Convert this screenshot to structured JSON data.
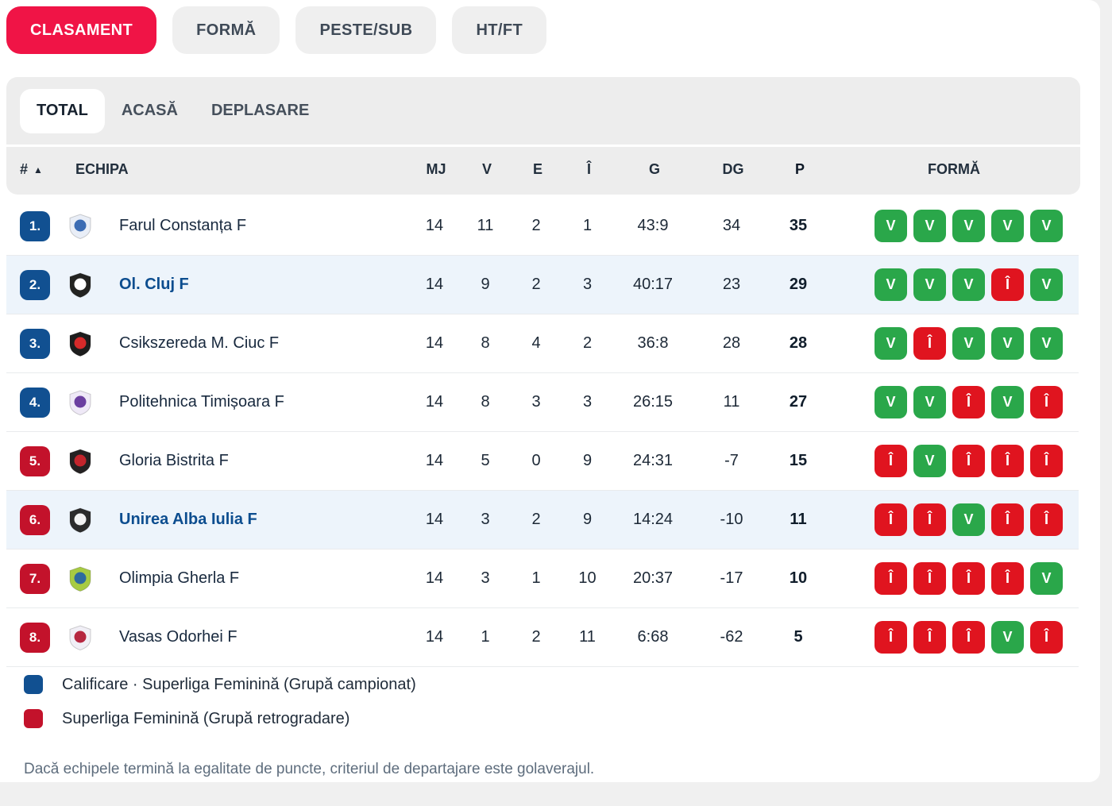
{
  "tabs": [
    {
      "label": "CLASAMENT",
      "active": true
    },
    {
      "label": "FORMĂ",
      "active": false
    },
    {
      "label": "PESTE/SUB",
      "active": false
    },
    {
      "label": "HT/FT",
      "active": false
    }
  ],
  "subtabs": [
    {
      "label": "TOTAL",
      "active": true
    },
    {
      "label": "ACASĂ",
      "active": false
    },
    {
      "label": "DEPLASARE",
      "active": false
    }
  ],
  "table": {
    "headers": {
      "rank": "#",
      "sort_asc": "▲",
      "team": "ECHIPA",
      "mj": "MJ",
      "v": "V",
      "e": "E",
      "i": "Î",
      "g": "G",
      "dg": "DG",
      "p": "P",
      "form": "FORMĂ"
    },
    "rows": [
      {
        "rank": "1.",
        "zone": "blue",
        "highlight": false,
        "team": "Farul Constanța F",
        "mj": "14",
        "v": "11",
        "e": "2",
        "i": "1",
        "g": "43:9",
        "dg": "34",
        "p": "35",
        "form": [
          "V",
          "V",
          "V",
          "V",
          "V"
        ],
        "logo": [
          "#e9eef7",
          "#3b6cb4"
        ]
      },
      {
        "rank": "2.",
        "zone": "blue",
        "highlight": true,
        "team": "Ol. Cluj F",
        "mj": "14",
        "v": "9",
        "e": "2",
        "i": "3",
        "g": "40:17",
        "dg": "23",
        "p": "29",
        "form": [
          "V",
          "V",
          "V",
          "Î",
          "V"
        ],
        "logo": [
          "#232321",
          "#ffffff"
        ]
      },
      {
        "rank": "3.",
        "zone": "blue",
        "highlight": false,
        "team": "Csikszereda M. Ciuc F",
        "mj": "14",
        "v": "8",
        "e": "4",
        "i": "2",
        "g": "36:8",
        "dg": "28",
        "p": "28",
        "form": [
          "V",
          "Î",
          "V",
          "V",
          "V"
        ],
        "logo": [
          "#1d1d1d",
          "#d62a2a"
        ]
      },
      {
        "rank": "4.",
        "zone": "blue",
        "highlight": false,
        "team": "Politehnica Timișoara F",
        "mj": "14",
        "v": "8",
        "e": "3",
        "i": "3",
        "g": "26:15",
        "dg": "11",
        "p": "27",
        "form": [
          "V",
          "V",
          "Î",
          "V",
          "Î"
        ],
        "logo": [
          "#efe9f7",
          "#6b3fa0"
        ]
      },
      {
        "rank": "5.",
        "zone": "red",
        "highlight": false,
        "team": "Gloria Bistrita F",
        "mj": "14",
        "v": "5",
        "e": "0",
        "i": "9",
        "g": "24:31",
        "dg": "-7",
        "p": "15",
        "form": [
          "Î",
          "V",
          "Î",
          "Î",
          "Î"
        ],
        "logo": [
          "#242122",
          "#c3242c"
        ]
      },
      {
        "rank": "6.",
        "zone": "red",
        "highlight": true,
        "team": "Unirea Alba Iulia F",
        "mj": "14",
        "v": "3",
        "e": "2",
        "i": "9",
        "g": "14:24",
        "dg": "-10",
        "p": "11",
        "form": [
          "Î",
          "Î",
          "V",
          "Î",
          "Î"
        ],
        "logo": [
          "#2b2b2b",
          "#f2f2f2"
        ]
      },
      {
        "rank": "7.",
        "zone": "red",
        "highlight": false,
        "team": "Olimpia Gherla F",
        "mj": "14",
        "v": "3",
        "e": "1",
        "i": "10",
        "g": "20:37",
        "dg": "-17",
        "p": "10",
        "form": [
          "Î",
          "Î",
          "Î",
          "Î",
          "V"
        ],
        "logo": [
          "#a7cb42",
          "#2e6b9e"
        ]
      },
      {
        "rank": "8.",
        "zone": "red",
        "highlight": false,
        "team": "Vasas Odorhei F",
        "mj": "14",
        "v": "1",
        "e": "2",
        "i": "11",
        "g": "6:68",
        "dg": "-62",
        "p": "5",
        "form": [
          "Î",
          "Î",
          "Î",
          "V",
          "Î"
        ],
        "logo": [
          "#f1eff6",
          "#b62740"
        ]
      }
    ]
  },
  "legend": [
    {
      "color": "#115091",
      "label": "Calificare · Superliga Feminină (Grupă campionat)"
    },
    {
      "color": "#c3122b",
      "label": "Superliga Feminină (Grupă retrogradare)"
    }
  ],
  "footer": {
    "note": "Dacă echipele termină la egalitate de puncte, criteriul de departajare este golaverajul."
  },
  "colors": {
    "accent": "#f01446",
    "rank_blue": "#115091",
    "rank_red": "#c3122b",
    "win_green": "#2aa74a",
    "loss_red": "#e0141f",
    "row_highlight": "#edf4fb"
  }
}
